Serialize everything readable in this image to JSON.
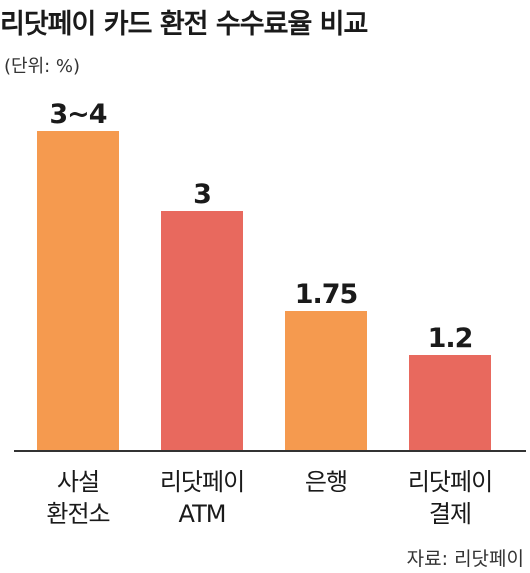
{
  "title": "리닷페이 카드 환전 수수료율 비교",
  "unit_label": "(단위: %)",
  "source": "자료: 리닷페이",
  "colors": {
    "orange": "#F59A4F",
    "red": "#E8695E",
    "axis": "#333333"
  },
  "chart_data": {
    "type": "bar",
    "title": "리닷페이 카드 환전 수수료율 비교",
    "ylabel": "",
    "xlabel": "",
    "ylim": [
      0,
      4.8
    ],
    "grid": false,
    "categories": [
      {
        "lines": [
          "사설",
          "환전소"
        ]
      },
      {
        "lines": [
          "리닷페이",
          "ATM"
        ]
      },
      {
        "lines": [
          "은행"
        ]
      },
      {
        "lines": [
          "리닷페이",
          "결제"
        ]
      }
    ],
    "values": [
      4,
      3,
      1.75,
      1.2
    ],
    "value_labels": [
      "3~4",
      "3",
      "1.75",
      "1.2"
    ],
    "bar_colors": [
      "#F59A4F",
      "#E8695E",
      "#F59A4F",
      "#E8695E"
    ]
  }
}
